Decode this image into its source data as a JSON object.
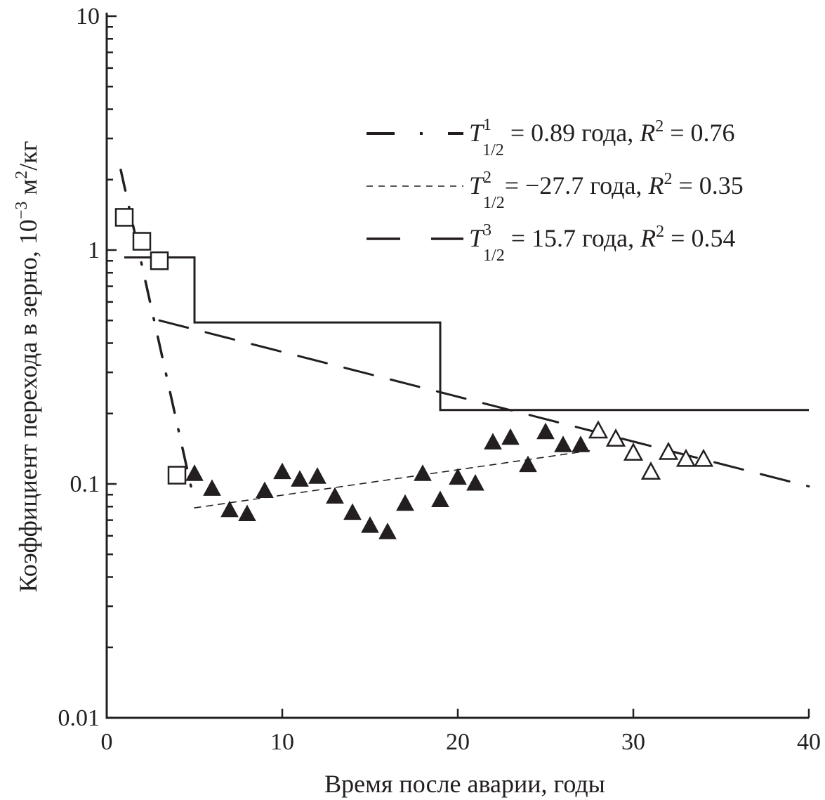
{
  "chart_data": {
    "type": "scatter",
    "xlabel": "Время после аварии, годы",
    "ylabel": {
      "main": "Коэффициент перехода в зерно, ",
      "base": "10",
      "exp": "−3",
      "unit1": " м",
      "unit1_exp": "2",
      "unit2": "/кг"
    },
    "xlim": [
      0,
      40
    ],
    "ylim": [
      0.01,
      10
    ],
    "yscale": "log",
    "xticks": [
      "0",
      "10",
      "20",
      "30",
      "40"
    ],
    "yticks": [
      "0.01",
      "0.1",
      "1",
      "10"
    ],
    "grid": false,
    "legend_position": "top-right",
    "colors": {
      "ink": "#231f20"
    },
    "series_points": [
      {
        "marker": "open-square",
        "x": [
          1,
          2,
          3,
          4
        ],
        "y": [
          1.38,
          1.09,
          0.9,
          0.109
        ]
      },
      {
        "marker": "filled-triangle",
        "x": [
          5,
          6,
          7,
          8,
          9,
          10,
          11,
          12,
          13,
          14,
          15,
          16,
          17,
          18,
          19,
          20,
          21,
          22,
          23,
          24,
          25,
          26,
          27
        ],
        "y": [
          0.11,
          0.095,
          0.077,
          0.074,
          0.093,
          0.112,
          0.104,
          0.107,
          0.088,
          0.075,
          0.066,
          0.062,
          0.082,
          0.11,
          0.085,
          0.106,
          0.1,
          0.15,
          0.157,
          0.12,
          0.166,
          0.146,
          0.146
        ]
      },
      {
        "marker": "open-triangle",
        "x": [
          28,
          29,
          30,
          31,
          32,
          33,
          34
        ],
        "y": [
          0.168,
          0.155,
          0.135,
          0.112,
          0.136,
          0.127,
          0.127
        ]
      }
    ],
    "step_line": {
      "x": [
        1,
        5,
        5,
        19,
        19,
        40
      ],
      "y": [
        0.93,
        0.93,
        0.49,
        0.49,
        0.207,
        0.207
      ]
    },
    "fits": [
      {
        "style": "dash-dot",
        "x_range": [
          0.8,
          4.8
        ],
        "y_start": 2.2,
        "half_life": 0.89,
        "legend": {
          "T": "T",
          "sup": "1",
          "sub": "1/2",
          "eq": " = 0.89 года, ",
          "R": "R",
          "R_sup": "2",
          "r_eq": " = 0.76"
        }
      },
      {
        "style": "short-dash",
        "x_range": [
          5,
          27.5
        ],
        "y_start": 0.079,
        "half_life": -27.7,
        "legend": {
          "T": "T",
          "sup": "2",
          "sub": "1/2",
          "eq": "= −27.7 года, ",
          "R": "R",
          "R_sup": "2",
          "r_eq": " = 0.35"
        }
      },
      {
        "style": "long-dash",
        "x_range": [
          3,
          40
        ],
        "y_start": 0.5,
        "half_life": 15.7,
        "legend": {
          "T": "T",
          "sup": "3",
          "sub": "1/2",
          "eq": " = 15.7 года, ",
          "R": "R",
          "R_sup": "2",
          "r_eq": " = 0.54"
        }
      }
    ]
  }
}
